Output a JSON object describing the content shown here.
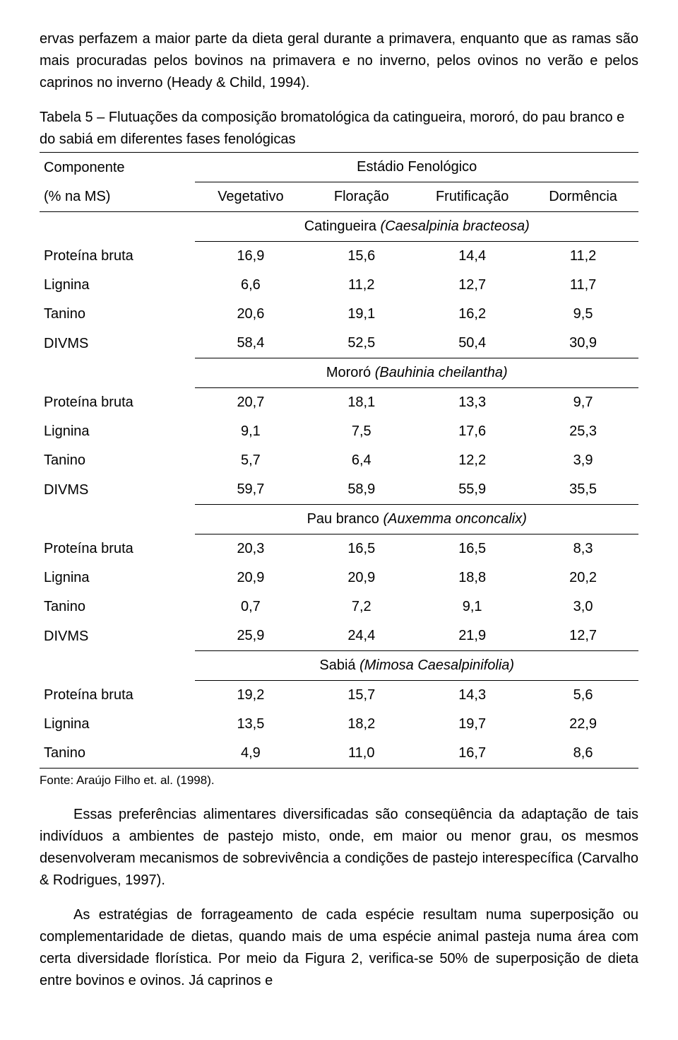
{
  "paragraphs": {
    "p1": "ervas perfazem a maior parte da dieta geral durante a primavera, enquanto que as ramas são mais procuradas pelos bovinos na primavera e no inverno, pelos ovinos no verão e pelos caprinos no inverno (Heady & Child, 1994).",
    "p2": "Essas preferências alimentares diversificadas são conseqüência da adaptação de tais indivíduos a ambientes de pastejo misto, onde, em maior ou menor grau, os mesmos desenvolveram mecanismos de sobrevivência a condições de pastejo interespecífica (Carvalho & Rodrigues, 1997).",
    "p3": "As estratégias de forrageamento de cada espécie resultam numa superposição ou complementaridade de dietas, quando mais de uma espécie animal pasteja numa área com certa diversidade florística. Por meio da Figura 2, verifica-se 50% de superposição de dieta entre bovinos e ovinos. Já caprinos e"
  },
  "table": {
    "title_label": "Tabela 5 – ",
    "title_text": "Flutuações da composição bromatológica da catingueira, mororó, do pau branco e do sabiá em diferentes fases fenológicas",
    "header": {
      "componente": "Componente",
      "subcomp": "(% na MS)",
      "group": "Estádio Fenológico",
      "c1": "Vegetativo",
      "c2": "Floração",
      "c3": "Frutificação",
      "c4": "Dormência"
    },
    "row_labels": {
      "proteina": "Proteína bruta",
      "lignina": "Lignina",
      "tanino": "Tanino",
      "divms": "DIVMS"
    },
    "species": {
      "s1": {
        "name": "Catingueira ",
        "latin": "(Caesalpinia bracteosa)",
        "rows": {
          "proteina": [
            "16,9",
            "15,6",
            "14,4",
            "11,2"
          ],
          "lignina": [
            "6,6",
            "11,2",
            "12,7",
            "11,7"
          ],
          "tanino": [
            "20,6",
            "19,1",
            "16,2",
            "9,5"
          ],
          "divms": [
            "58,4",
            "52,5",
            "50,4",
            "30,9"
          ]
        }
      },
      "s2": {
        "name": "Mororó ",
        "latin": "(Bauhinia cheilantha)",
        "rows": {
          "proteina": [
            "20,7",
            "18,1",
            "13,3",
            "9,7"
          ],
          "lignina": [
            "9,1",
            "7,5",
            "17,6",
            "25,3"
          ],
          "tanino": [
            "5,7",
            "6,4",
            "12,2",
            "3,9"
          ],
          "divms": [
            "59,7",
            "58,9",
            "55,9",
            "35,5"
          ]
        }
      },
      "s3": {
        "name": "Pau branco ",
        "latin": "(Auxemma onconcalix)",
        "rows": {
          "proteina": [
            "20,3",
            "16,5",
            "16,5",
            "8,3"
          ],
          "lignina": [
            "20,9",
            "20,9",
            "18,8",
            "20,2"
          ],
          "tanino": [
            "0,7",
            "7,2",
            "9,1",
            "3,0"
          ],
          "divms": [
            "25,9",
            "24,4",
            "21,9",
            "12,7"
          ]
        }
      },
      "s4": {
        "name": "Sabiá ",
        "latin": "(Mimosa Caesalpinifolia)",
        "rows": {
          "proteina": [
            "19,2",
            "15,7",
            "14,3",
            "5,6"
          ],
          "lignina": [
            "13,5",
            "18,2",
            "19,7",
            "22,9"
          ],
          "tanino": [
            "4,9",
            "11,0",
            "16,7",
            "8,6"
          ]
        }
      }
    },
    "source": "Fonte: Araújo Filho et. al. (1998)."
  }
}
